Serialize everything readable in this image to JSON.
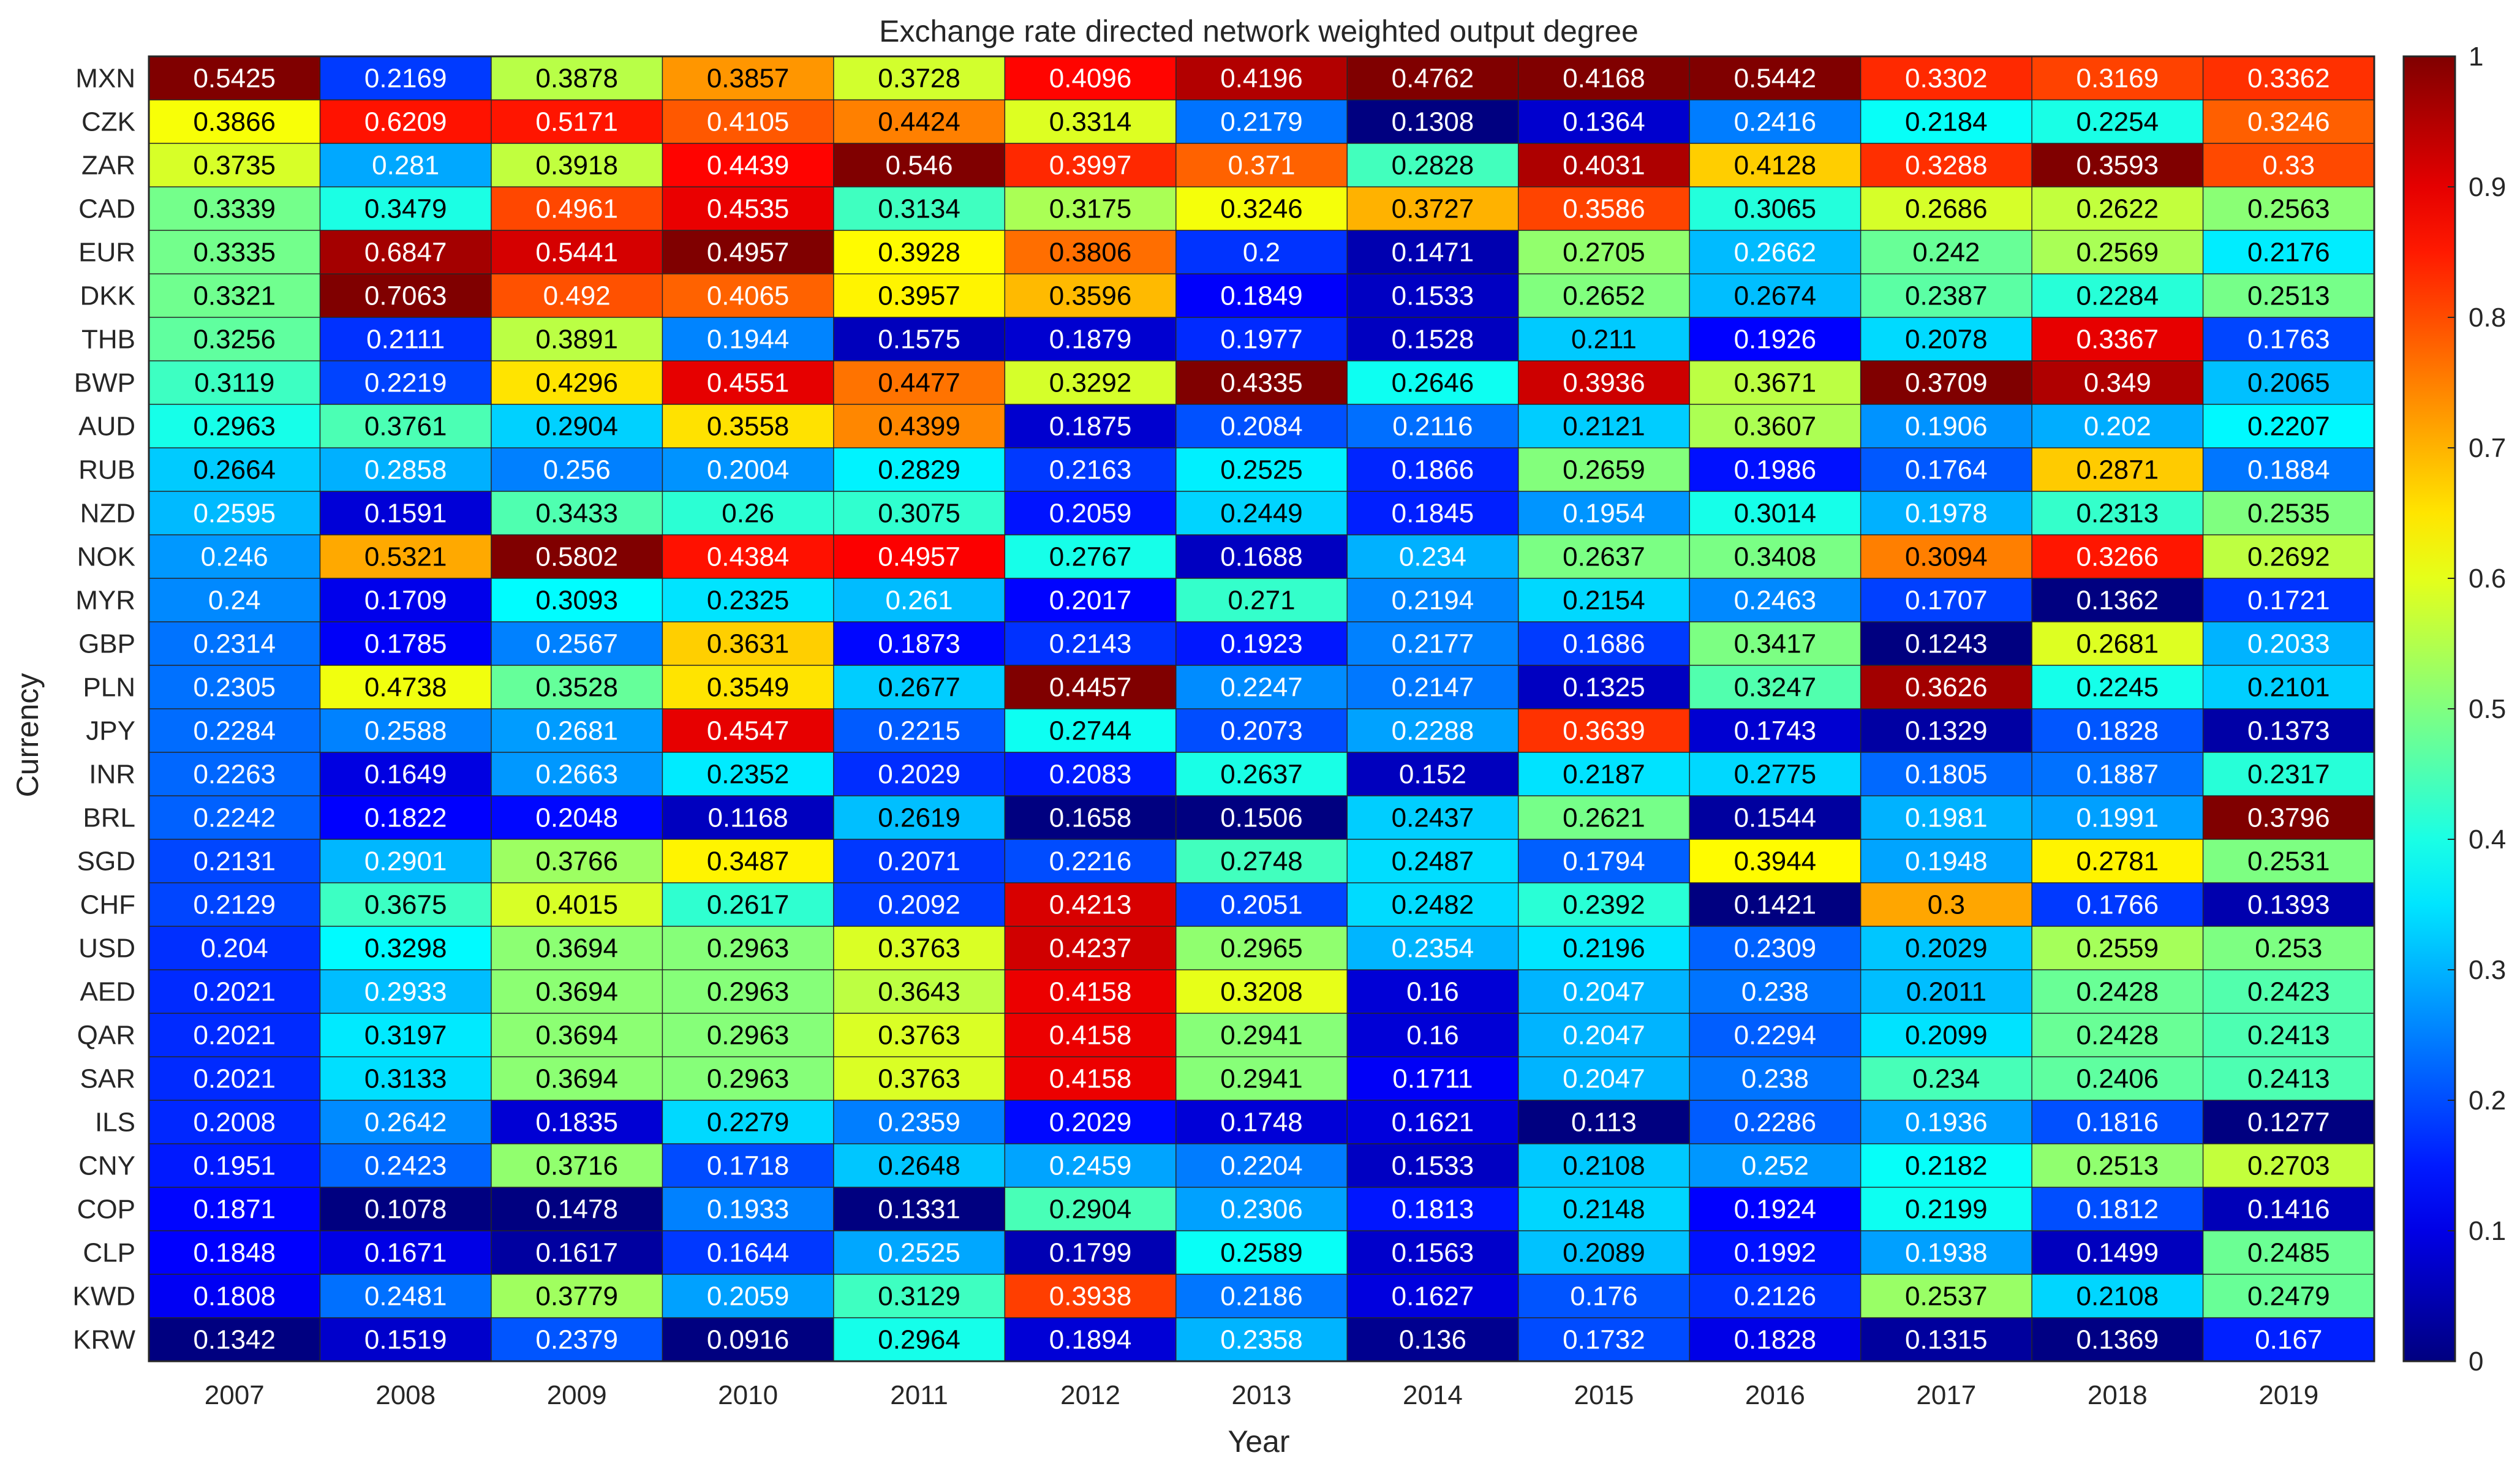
{
  "chart_data": {
    "type": "heatmap",
    "title": "Exchange rate directed network weighted output degree",
    "xlabel": "Year",
    "ylabel": "Currency",
    "x": [
      "2007",
      "2008",
      "2009",
      "2010",
      "2011",
      "2012",
      "2013",
      "2014",
      "2015",
      "2016",
      "2017",
      "2018",
      "2019"
    ],
    "y": [
      "MXN",
      "CZK",
      "ZAR",
      "CAD",
      "EUR",
      "DKK",
      "THB",
      "BWP",
      "AUD",
      "RUB",
      "NZD",
      "NOK",
      "MYR",
      "GBP",
      "PLN",
      "JPY",
      "INR",
      "BRL",
      "SGD",
      "CHF",
      "USD",
      "AED",
      "QAR",
      "SAR",
      "ILS",
      "CNY",
      "COP",
      "CLP",
      "KWD",
      "KRW"
    ],
    "values": [
      [
        "0.5425",
        "0.2169",
        "0.3878",
        "0.3857",
        "0.3728",
        "0.4096",
        "0.4196",
        "0.4762",
        "0.4168",
        "0.5442",
        "0.3302",
        "0.3169",
        "0.3362"
      ],
      [
        "0.3866",
        "0.6209",
        "0.5171",
        "0.4105",
        "0.4424",
        "0.3314",
        "0.2179",
        "0.1308",
        "0.1364",
        "0.2416",
        "0.2184",
        "0.2254",
        "0.3246"
      ],
      [
        "0.3735",
        "0.281",
        "0.3918",
        "0.4439",
        "0.546",
        "0.3997",
        "0.371",
        "0.2828",
        "0.4031",
        "0.4128",
        "0.3288",
        "0.3593",
        "0.33"
      ],
      [
        "0.3339",
        "0.3479",
        "0.4961",
        "0.4535",
        "0.3134",
        "0.3175",
        "0.3246",
        "0.3727",
        "0.3586",
        "0.3065",
        "0.2686",
        "0.2622",
        "0.2563"
      ],
      [
        "0.3335",
        "0.6847",
        "0.5441",
        "0.4957",
        "0.3928",
        "0.3806",
        "0.2",
        "0.1471",
        "0.2705",
        "0.2662",
        "0.242",
        "0.2569",
        "0.2176"
      ],
      [
        "0.3321",
        "0.7063",
        "0.492",
        "0.4065",
        "0.3957",
        "0.3596",
        "0.1849",
        "0.1533",
        "0.2652",
        "0.2674",
        "0.2387",
        "0.2284",
        "0.2513"
      ],
      [
        "0.3256",
        "0.2111",
        "0.3891",
        "0.1944",
        "0.1575",
        "0.1879",
        "0.1977",
        "0.1528",
        "0.211",
        "0.1926",
        "0.2078",
        "0.3367",
        "0.1763"
      ],
      [
        "0.3119",
        "0.2219",
        "0.4296",
        "0.4551",
        "0.4477",
        "0.3292",
        "0.4335",
        "0.2646",
        "0.3936",
        "0.3671",
        "0.3709",
        "0.349",
        "0.2065"
      ],
      [
        "0.2963",
        "0.3761",
        "0.2904",
        "0.3558",
        "0.4399",
        "0.1875",
        "0.2084",
        "0.2116",
        "0.2121",
        "0.3607",
        "0.1906",
        "0.202",
        "0.2207"
      ],
      [
        "0.2664",
        "0.2858",
        "0.256",
        "0.2004",
        "0.2829",
        "0.2163",
        "0.2525",
        "0.1866",
        "0.2659",
        "0.1986",
        "0.1764",
        "0.2871",
        "0.1884"
      ],
      [
        "0.2595",
        "0.1591",
        "0.3433",
        "0.26",
        "0.3075",
        "0.2059",
        "0.2449",
        "0.1845",
        "0.1954",
        "0.3014",
        "0.1978",
        "0.2313",
        "0.2535"
      ],
      [
        "0.246",
        "0.5321",
        "0.5802",
        "0.4384",
        "0.4957",
        "0.2767",
        "0.1688",
        "0.234",
        "0.2637",
        "0.3408",
        "0.3094",
        "0.3266",
        "0.2692"
      ],
      [
        "0.24",
        "0.1709",
        "0.3093",
        "0.2325",
        "0.261",
        "0.2017",
        "0.271",
        "0.2194",
        "0.2154",
        "0.2463",
        "0.1707",
        "0.1362",
        "0.1721"
      ],
      [
        "0.2314",
        "0.1785",
        "0.2567",
        "0.3631",
        "0.1873",
        "0.2143",
        "0.1923",
        "0.2177",
        "0.1686",
        "0.3417",
        "0.1243",
        "0.2681",
        "0.2033"
      ],
      [
        "0.2305",
        "0.4738",
        "0.3528",
        "0.3549",
        "0.2677",
        "0.4457",
        "0.2247",
        "0.2147",
        "0.1325",
        "0.3247",
        "0.3626",
        "0.2245",
        "0.2101"
      ],
      [
        "0.2284",
        "0.2588",
        "0.2681",
        "0.4547",
        "0.2215",
        "0.2744",
        "0.2073",
        "0.2288",
        "0.3639",
        "0.1743",
        "0.1329",
        "0.1828",
        "0.1373"
      ],
      [
        "0.2263",
        "0.1649",
        "0.2663",
        "0.2352",
        "0.2029",
        "0.2083",
        "0.2637",
        "0.152",
        "0.2187",
        "0.2775",
        "0.1805",
        "0.1887",
        "0.2317"
      ],
      [
        "0.2242",
        "0.1822",
        "0.2048",
        "0.1168",
        "0.2619",
        "0.1658",
        "0.1506",
        "0.2437",
        "0.2621",
        "0.1544",
        "0.1981",
        "0.1991",
        "0.3796"
      ],
      [
        "0.2131",
        "0.2901",
        "0.3766",
        "0.3487",
        "0.2071",
        "0.2216",
        "0.2748",
        "0.2487",
        "0.1794",
        "0.3944",
        "0.1948",
        "0.2781",
        "0.2531"
      ],
      [
        "0.2129",
        "0.3675",
        "0.4015",
        "0.2617",
        "0.2092",
        "0.4213",
        "0.2051",
        "0.2482",
        "0.2392",
        "0.1421",
        "0.3",
        "0.1766",
        "0.1393"
      ],
      [
        "0.204",
        "0.3298",
        "0.3694",
        "0.2963",
        "0.3763",
        "0.4237",
        "0.2965",
        "0.2354",
        "0.2196",
        "0.2309",
        "0.2029",
        "0.2559",
        "0.253"
      ],
      [
        "0.2021",
        "0.2933",
        "0.3694",
        "0.2963",
        "0.3643",
        "0.4158",
        "0.3208",
        "0.16",
        "0.2047",
        "0.238",
        "0.2011",
        "0.2428",
        "0.2423"
      ],
      [
        "0.2021",
        "0.3197",
        "0.3694",
        "0.2963",
        "0.3763",
        "0.4158",
        "0.2941",
        "0.16",
        "0.2047",
        "0.2294",
        "0.2099",
        "0.2428",
        "0.2413"
      ],
      [
        "0.2021",
        "0.3133",
        "0.3694",
        "0.2963",
        "0.3763",
        "0.4158",
        "0.2941",
        "0.1711",
        "0.2047",
        "0.238",
        "0.234",
        "0.2406",
        "0.2413"
      ],
      [
        "0.2008",
        "0.2642",
        "0.1835",
        "0.2279",
        "0.2359",
        "0.2029",
        "0.1748",
        "0.1621",
        "0.113",
        "0.2286",
        "0.1936",
        "0.1816",
        "0.1277"
      ],
      [
        "0.1951",
        "0.2423",
        "0.3716",
        "0.1718",
        "0.2648",
        "0.2459",
        "0.2204",
        "0.1533",
        "0.2108",
        "0.252",
        "0.2182",
        "0.2513",
        "0.2703"
      ],
      [
        "0.1871",
        "0.1078",
        "0.1478",
        "0.1933",
        "0.1331",
        "0.2904",
        "0.2306",
        "0.1813",
        "0.2148",
        "0.1924",
        "0.2199",
        "0.1812",
        "0.1416"
      ],
      [
        "0.1848",
        "0.1671",
        "0.1617",
        "0.1644",
        "0.2525",
        "0.1799",
        "0.2589",
        "0.1563",
        "0.2089",
        "0.1992",
        "0.1938",
        "0.1499",
        "0.2485"
      ],
      [
        "0.1808",
        "0.2481",
        "0.3779",
        "0.2059",
        "0.3129",
        "0.3938",
        "0.2186",
        "0.1627",
        "0.176",
        "0.2126",
        "0.2537",
        "0.2108",
        "0.2479"
      ],
      [
        "0.1342",
        "0.1519",
        "0.2379",
        "0.0916",
        "0.2964",
        "0.1894",
        "0.2358",
        "0.136",
        "0.1732",
        "0.1828",
        "0.1315",
        "0.1369",
        "0.167"
      ]
    ],
    "colormap": "jet",
    "colorbar": {
      "range": [
        0,
        1
      ],
      "ticks": [
        "0",
        "0.1",
        "0.2",
        "0.3",
        "0.4",
        "0.5",
        "0.6",
        "0.7",
        "0.8",
        "0.9",
        "1"
      ]
    },
    "grid": false,
    "legend": "none"
  }
}
